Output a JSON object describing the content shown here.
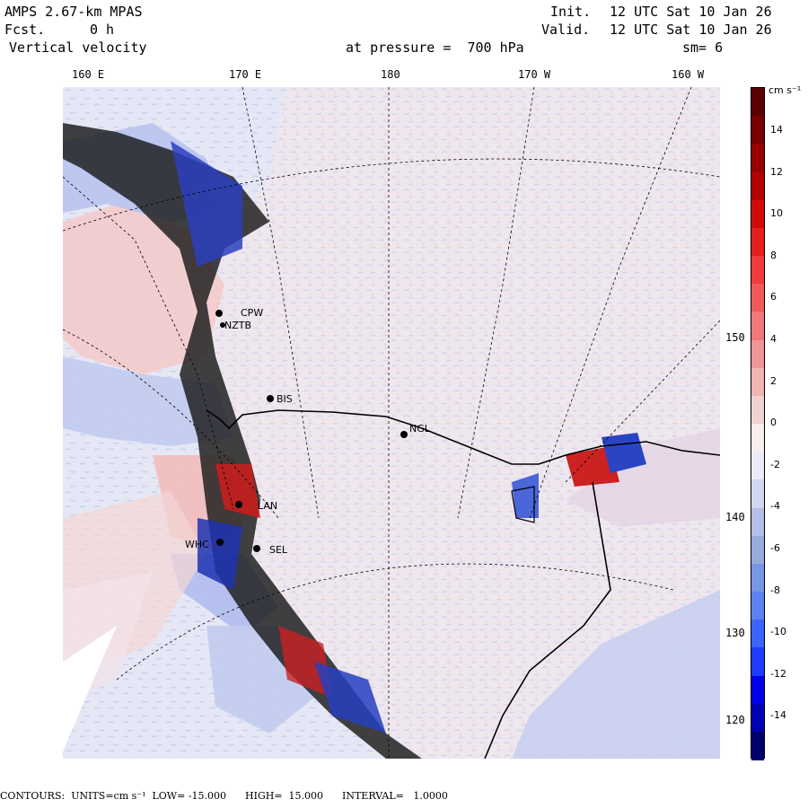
{
  "header": {
    "model": "AMPS 2.67-km MPAS",
    "forecast_label": "Fcst.",
    "forecast_hours": "0 h",
    "variable": "Vertical velocity",
    "init_label": "Init.",
    "init_time": "12 UTC Sat 10 Jan 26",
    "valid_label": "Valid.",
    "valid_time": "12 UTC Sat 10 Jan 26",
    "level": "at pressure =  700 hPa",
    "smoothing": "sm= 6"
  },
  "longitude_labels": [
    "160 E",
    "170 E",
    "180",
    "170 W",
    "160 W"
  ],
  "right_labels": [
    "150 W",
    "140 W",
    "130 W",
    "120 W"
  ],
  "stations": [
    "CPW",
    "NZTB",
    "BIS",
    "NGL",
    "LAN",
    "WHC",
    "SEL"
  ],
  "colorbar": {
    "units": "cm s⁻¹",
    "tick_labels": [
      "14",
      "12",
      "10",
      "8",
      "6",
      "4",
      "2",
      "0",
      "-2",
      "-4",
      "-6",
      "-8",
      "-10",
      "-12",
      "-14"
    ],
    "colors": [
      "#00006e",
      "#0000b4",
      "#0000e6",
      "#1e3cff",
      "#3c64ff",
      "#5a82f0",
      "#7896e6",
      "#96aadc",
      "#b4bee6",
      "#d2d7f0",
      "#ebebf8",
      "#f8eeee",
      "#f0d2d2",
      "#f0b4b4",
      "#f09696",
      "#f07878",
      "#f05a5a",
      "#f03c3c",
      "#e61e1e",
      "#d20a0a",
      "#b40000",
      "#960000",
      "#780000",
      "#5a0000"
    ]
  },
  "footer": "CONTOURS:  UNITS=cm s⁻¹  LOW= -15.000      HIGH=  15.000      INTERVAL=   1.0000",
  "colors": {
    "ice_shelf_bg": "#f4e9ef",
    "ocean_bg": "#eaeaf5",
    "positive": "#e04040",
    "negative": "#3050d0"
  }
}
